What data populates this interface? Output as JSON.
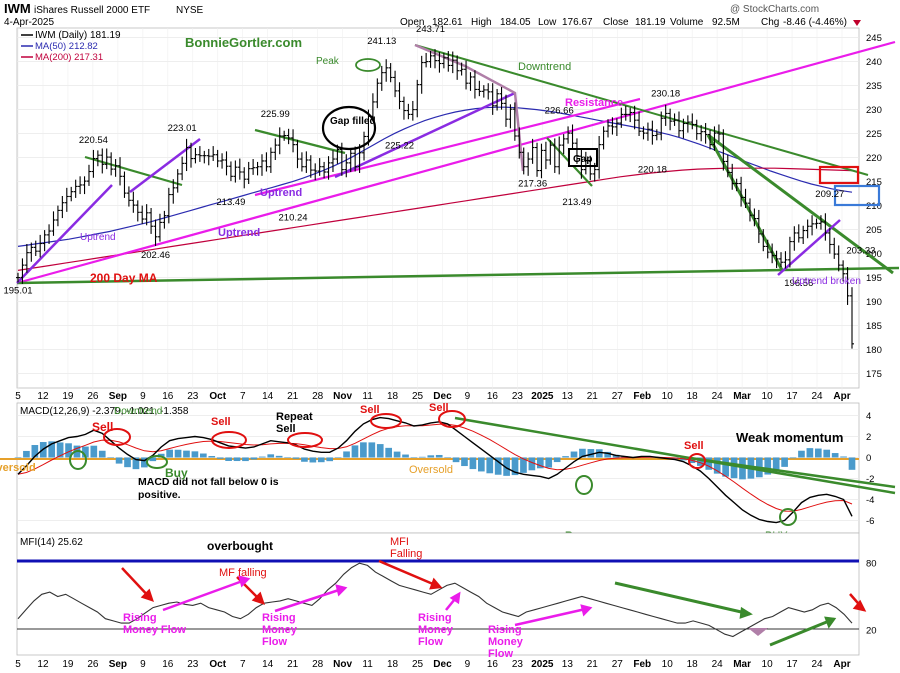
{
  "header": {
    "symbol": "IWM",
    "name": "iShares Russell 2000 ETF",
    "exchange": "NYSE",
    "date": "4-Apr-2025",
    "copyright": "@ StockCharts.com",
    "open_label": "Open",
    "open": "182.61",
    "high_label": "High",
    "high": "184.05",
    "low_label": "Low",
    "low": "176.67",
    "close_label": "Close",
    "close": "181.19",
    "volume_label": "Volume",
    "volume": "92.5M",
    "chg_label": "Chg",
    "chg": "-8.46 (-4.46%)",
    "chg_color": "#c0002b"
  },
  "legend": {
    "price": "IWM (Daily) 181.19",
    "ma50": "MA(50) 212.82",
    "ma200": "MA(200) 217.31"
  },
  "colors": {
    "price": "#000000",
    "ma50": "#2b2bb0",
    "ma200": "#c0003c",
    "magenta": "#ea1cea",
    "purple": "#8a2be2",
    "green": "#3a8a2c",
    "mauve": "#b07fa8",
    "macd_hist": "#4a9acb",
    "mfi_ref": "#1010b4",
    "orange": "#e6a02a",
    "red": "#e01010"
  },
  "x_axis": {
    "labels": [
      "5",
      "12",
      "19",
      "26",
      "Sep",
      "9",
      "16",
      "23",
      "Oct",
      "7",
      "14",
      "21",
      "28",
      "Nov",
      "11",
      "18",
      "25",
      "Dec",
      "9",
      "16",
      "23",
      "2025",
      "13",
      "21",
      "27",
      "Feb",
      "10",
      "18",
      "24",
      "Mar",
      "10",
      "17",
      "24",
      "Apr"
    ]
  },
  "price_axis": {
    "ticks": [
      175,
      180,
      185,
      190,
      195,
      200,
      205,
      210,
      215,
      220,
      225,
      230,
      235,
      240,
      245
    ]
  },
  "macd_axis": {
    "ticks": [
      4,
      2,
      0,
      -2,
      -4,
      -6
    ]
  },
  "mfi_axis": {
    "ticks": [
      80,
      20
    ]
  },
  "panels": {
    "macd_label": "MACD(12,26,9) -2.379, -1.021, -1.358",
    "mfi_label": "MFI(14) 25.62"
  },
  "annotations": {
    "site": "BonnieGortler.com",
    "peak": "Peak",
    "gap_filled": "Gap filled",
    "downtrend": "Downtrend",
    "downtrend_macd": "Downtrend",
    "resistance": "Resistance",
    "gap": "Gap",
    "uptrend1": "Uptrend",
    "uptrend2": "Uptrend",
    "uptrend3": "Uptrend",
    "uptrend_broken": "Uptrend broken",
    "ma200_note": "200 Day MA",
    "weak_momentum": "Weak momentum",
    "macd_note": "MACD did not fall below 0 is positive.",
    "oversold1": "Oversold",
    "oversold2": "Oversold",
    "buy1": "Buy",
    "buy2": "Buy",
    "buy3": "BUY",
    "sell1": "Sell",
    "sell2": "Sell",
    "repeat_sell": "Repeat Sell",
    "sell3": "Sell",
    "sell4": "Sell",
    "sell5": "Sell",
    "overbought": "overbought",
    "mfi_falling": "MFI Falling",
    "mf_falling": "MF falling",
    "rising1": "Rising Money Flow",
    "rising2": "Rising Money Flow",
    "rising3": "Rising Money Flow",
    "rising4": "Rising Money Flow"
  },
  "chart_data": {
    "type": "line",
    "title": "IWM iShares Russell 2000 ETF NYSE",
    "ylim": [
      172,
      247
    ],
    "price_labels": [
      {
        "x": 0,
        "value": 195.01
      },
      {
        "x": 17,
        "value": 220.54
      },
      {
        "x": 31,
        "value": 202.46
      },
      {
        "x": 37,
        "value": 223.01
      },
      {
        "x": 48,
        "value": 213.49
      },
      {
        "x": 58,
        "value": 225.99
      },
      {
        "x": 62,
        "value": 210.24
      },
      {
        "x": 82,
        "value": 241.13
      },
      {
        "x": 86,
        "value": 225.22
      },
      {
        "x": 93,
        "value": 243.71
      },
      {
        "x": 116,
        "value": 217.36
      },
      {
        "x": 122,
        "value": 226.66
      },
      {
        "x": 126,
        "value": 213.49
      },
      {
        "x": 146,
        "value": 230.18
      },
      {
        "x": 143,
        "value": 220.18
      },
      {
        "x": 176,
        "value": 196.56
      },
      {
        "x": 183,
        "value": 209.27
      },
      {
        "x": 190,
        "value": 203.33
      }
    ],
    "series": [
      {
        "name": "IWM (Daily)",
        "values": [
          195.0,
          197.6,
          200.2,
          201.3,
          200.5,
          202.1,
          203.9,
          204.7,
          207.0,
          209.0,
          210.6,
          211.9,
          212.9,
          214.0,
          214.3,
          215.1,
          217.1,
          219.8,
          220.5,
          218.6,
          220.1,
          217.6,
          218.3,
          216.1,
          212.6,
          211.1,
          210.1,
          208.6,
          207.2,
          208.5,
          205.7,
          203.5,
          206.5,
          207.9,
          212.3,
          213.7,
          216.6,
          218.8,
          222.1,
          219.8,
          220.6,
          220.4,
          220.4,
          220.3,
          220.6,
          219.3,
          219.5,
          218.2,
          216.1,
          218.0,
          217.0,
          215.5,
          217.7,
          217.9,
          218.1,
          219.3,
          218.1,
          221.1,
          222.6,
          224.5,
          224.6,
          224.1,
          222.7,
          219.7,
          218.1,
          219.5,
          217.4,
          217.2,
          218.1,
          217.0,
          218.9,
          219.7,
          221.7,
          217.5,
          218.9,
          220.9,
          218.1,
          221.0,
          224.4,
          228.6,
          231.6,
          235.5,
          237.7,
          238.7,
          236.7,
          233.9,
          231.7,
          229.8,
          229.0,
          230.0,
          235.2,
          239.8,
          240.0,
          241.2,
          240.2,
          239.6,
          240.8,
          239.2,
          240.3,
          238.1,
          238.4,
          235.5,
          236.8,
          234.2,
          233.8,
          234.1,
          233.7,
          230.8,
          233.3,
          231.3,
          228.0,
          230.1,
          224.5,
          221.1,
          218.1,
          219.7,
          222.1,
          217.3,
          221.5,
          219.5,
          222.6,
          218.1,
          222.6,
          223.9,
          225.1,
          223.0,
          220.3,
          217.5,
          219.4,
          216.6,
          217.5,
          222.7,
          225.5,
          226.6,
          226.4,
          227.2,
          229.0,
          229.0,
          229.4,
          227.8,
          225.5,
          225.1,
          225.9,
          224.6,
          224.9,
          228.2,
          229.2,
          227.6,
          227.8,
          225.6,
          227.1,
          227.4,
          226.9,
          225.0,
          225.4,
          224.8,
          222.7,
          225.1,
          224.9,
          219.2,
          216.9,
          214.6,
          214.6,
          211.7,
          210.5,
          208.0,
          207.3,
          204.1,
          201.5,
          200.3,
          199.6,
          198.9,
          198.2,
          198.7,
          202.5,
          204.3,
          203.3,
          204.8,
          205.7,
          206.2,
          206.3,
          206.6,
          204.3,
          201.9,
          199.9,
          197.6,
          195.8,
          191.2,
          181.2
        ]
      },
      {
        "name": "MA(50)",
        "values": [
          201.5,
          201.8,
          202.1,
          202.4,
          202.7,
          203.0,
          203.4,
          203.8,
          204.2,
          204.6,
          205.1,
          205.6,
          206.1,
          206.6,
          207.2,
          207.8,
          208.4,
          209.0,
          209.6,
          210.2,
          210.8,
          211.4,
          212.0,
          212.6,
          213.2,
          213.8,
          214.4,
          215.0,
          215.7,
          216.5,
          217.3,
          218.2,
          219.2,
          220.3,
          221.5,
          222.7,
          223.9,
          225.0,
          226.0,
          226.9,
          227.7,
          228.4,
          229.0,
          229.5,
          229.9,
          230.2,
          230.4,
          230.5,
          230.5,
          230.4,
          230.2,
          230.0,
          229.7,
          229.4,
          229.0,
          228.6,
          228.2,
          227.8,
          227.4,
          227.0,
          226.6,
          226.2,
          225.8,
          225.3,
          224.8,
          224.2,
          223.5,
          222.8,
          222.0,
          221.2,
          220.4,
          219.6,
          218.8,
          218.0,
          217.2,
          216.5,
          215.8,
          215.1,
          214.5,
          214.0,
          213.5,
          213.1,
          212.8
        ]
      },
      {
        "name": "MA(200)",
        "values": [
          196.5,
          197.0,
          197.5,
          198.0,
          198.5,
          199.0,
          199.5,
          200.0,
          200.5,
          201.0,
          201.5,
          202.0,
          202.5,
          203.0,
          203.5,
          204.0,
          204.5,
          205.0,
          205.5,
          206.0,
          206.5,
          207.0,
          207.5,
          208.0,
          208.5,
          209.0,
          209.5,
          210.0,
          210.5,
          211.0,
          211.5,
          212.0,
          212.5,
          213.0,
          213.5,
          214.0,
          214.5,
          215.0,
          215.5,
          216.0,
          216.4,
          216.8,
          217.1,
          217.4,
          217.6,
          217.7,
          217.8,
          217.8,
          217.8,
          217.8,
          217.7,
          217.6,
          217.5,
          217.4,
          217.3
        ]
      }
    ],
    "macd": {
      "ylim": [
        -7,
        5
      ],
      "macd_line": [
        -1.6,
        -0.8,
        0.1,
        0.8,
        1.3,
        1.6,
        1.9,
        2.0,
        2.2,
        2.6,
        2.3,
        1.6,
        0.9,
        0.3,
        -0.2,
        -0.3,
        0.2,
        1.0,
        1.6,
        1.8,
        1.9,
        2.0,
        1.9,
        1.7,
        1.4,
        1.1,
        1.0,
        0.9,
        1.0,
        1.3,
        1.6,
        1.5,
        1.4,
        1.2,
        0.8,
        0.6,
        0.5,
        0.5,
        0.9,
        1.6,
        2.5,
        3.2,
        3.6,
        3.8,
        3.7,
        3.5,
        3.3,
        3.0,
        3.1,
        3.3,
        3.4,
        3.2,
        2.6,
        2.0,
        1.4,
        0.8,
        0.2,
        -0.4,
        -1.0,
        -1.4,
        -1.6,
        -1.7,
        -1.8,
        -2.0,
        -1.6,
        -1.0,
        -0.4,
        0.1,
        0.3,
        0.5,
        0.4,
        0.2,
        0.1,
        0.0,
        0.1,
        0.1,
        0.0,
        -0.1,
        -0.2,
        -0.4,
        -0.8,
        -1.3,
        -2.0,
        -2.8,
        -3.6,
        -4.3,
        -5.0,
        -5.5,
        -5.9,
        -6.1,
        -6.2,
        -6.0,
        -5.2,
        -4.3,
        -3.8,
        -3.6,
        -3.5,
        -3.7,
        -4.0,
        -5.6
      ]
    },
    "mfi": {
      "ylim": [
        0,
        100
      ],
      "values": [
        30,
        38,
        46,
        52,
        54,
        50,
        52,
        48,
        44,
        40,
        36,
        30,
        28,
        26,
        26,
        30,
        35,
        40,
        42,
        44,
        45,
        43,
        42,
        44,
        40,
        38,
        36,
        32,
        30,
        34,
        40,
        44,
        45,
        46,
        48,
        46,
        44,
        42,
        48,
        56,
        62,
        70,
        76,
        80,
        78,
        72,
        68,
        64,
        60,
        58,
        56,
        54,
        52,
        56,
        60,
        62,
        58,
        54,
        50,
        44,
        40,
        36,
        34,
        32,
        36,
        38,
        40,
        42,
        44,
        46,
        48,
        50,
        48,
        46,
        44,
        42,
        40,
        38,
        36,
        34,
        32,
        30,
        28,
        26,
        26,
        28,
        26,
        24,
        20,
        16,
        14,
        18,
        22,
        26,
        30,
        32,
        36,
        40,
        38,
        36,
        38,
        42,
        44,
        40,
        34,
        26
      ]
    }
  }
}
